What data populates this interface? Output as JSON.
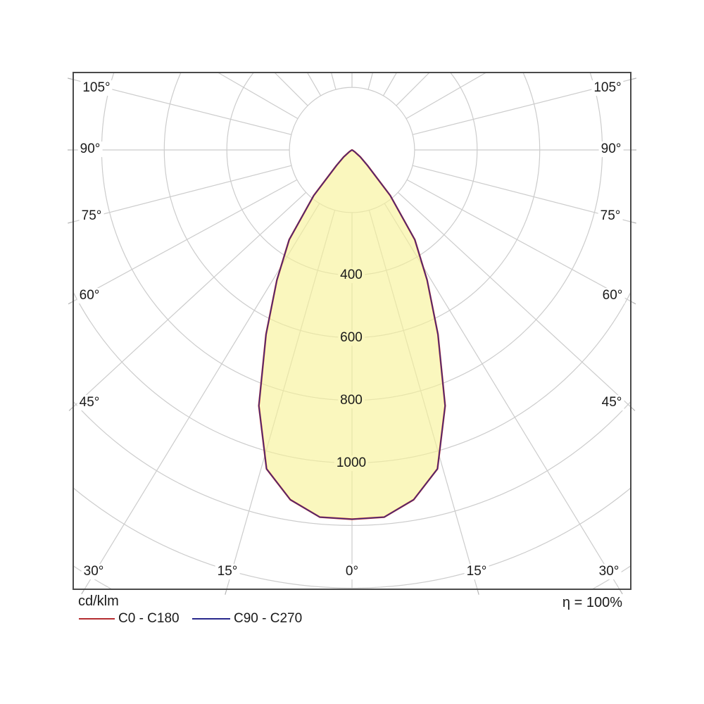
{
  "footer": {
    "unit": "cd/klm",
    "efficiency": "η = 100%",
    "legend": [
      {
        "label": "C0 - C180",
        "color": "#b42d30"
      },
      {
        "label": "C90 - C270",
        "color": "#28288c"
      }
    ]
  },
  "polar": {
    "angle_labels": [
      {
        "id": "L105",
        "text": "105°"
      },
      {
        "id": "L90",
        "text": "90°"
      },
      {
        "id": "L75",
        "text": "75°"
      },
      {
        "id": "L60",
        "text": "60°"
      },
      {
        "id": "L45",
        "text": "45°"
      },
      {
        "id": "L30",
        "text": "30°"
      },
      {
        "id": "B15L",
        "text": "15°"
      },
      {
        "id": "B0",
        "text": "0°"
      },
      {
        "id": "B15R",
        "text": "15°"
      },
      {
        "id": "R30",
        "text": "30°"
      },
      {
        "id": "R45",
        "text": "45°"
      },
      {
        "id": "R60",
        "text": "60°"
      },
      {
        "id": "R75",
        "text": "75°"
      },
      {
        "id": "R90",
        "text": "90°"
      },
      {
        "id": "R105",
        "text": "105°"
      }
    ],
    "ring_labels": [
      {
        "value": 400,
        "text": "400"
      },
      {
        "value": 600,
        "text": "600"
      },
      {
        "value": 800,
        "text": "800"
      },
      {
        "value": 1000,
        "text": "1000"
      }
    ],
    "colors": {
      "grid": "#cccccc",
      "frame": "#4a4a4a",
      "beam_fill": "rgba(247,242,150,0.62)",
      "c0_curve": "#b42d30",
      "c90_curve": "#28288c"
    }
  },
  "chart_data": {
    "type": "polar",
    "unit": "cd/klm",
    "efficiency": "100%",
    "legend_position": "bottom-left",
    "gamma_deg": [
      0,
      5,
      10,
      15,
      20,
      25,
      30,
      35,
      40,
      45,
      50,
      55,
      60,
      65,
      70,
      75,
      80,
      85,
      90
    ],
    "series": [
      {
        "name": "C0 - C180",
        "color": "#b42d30",
        "values": [
          1180,
          1178,
          1135,
          1055,
          870,
          650,
          480,
          350,
          190,
          70,
          35,
          12,
          4,
          0,
          0,
          0,
          0,
          0,
          0
        ]
      },
      {
        "name": "C90 - C270",
        "color": "#28288c",
        "values": [
          1180,
          1178,
          1135,
          1055,
          870,
          650,
          480,
          350,
          190,
          70,
          35,
          12,
          4,
          0,
          0,
          0,
          0,
          0,
          0
        ]
      }
    ],
    "ring_values": [
      200,
      400,
      600,
      800,
      1000,
      1200,
      1400,
      1600
    ],
    "labeled_rings": [
      400,
      600,
      800,
      1000
    ],
    "angle_tick_deg": [
      0,
      15,
      30,
      45,
      60,
      75,
      90,
      105
    ],
    "grid_ray_step_deg": 15
  }
}
